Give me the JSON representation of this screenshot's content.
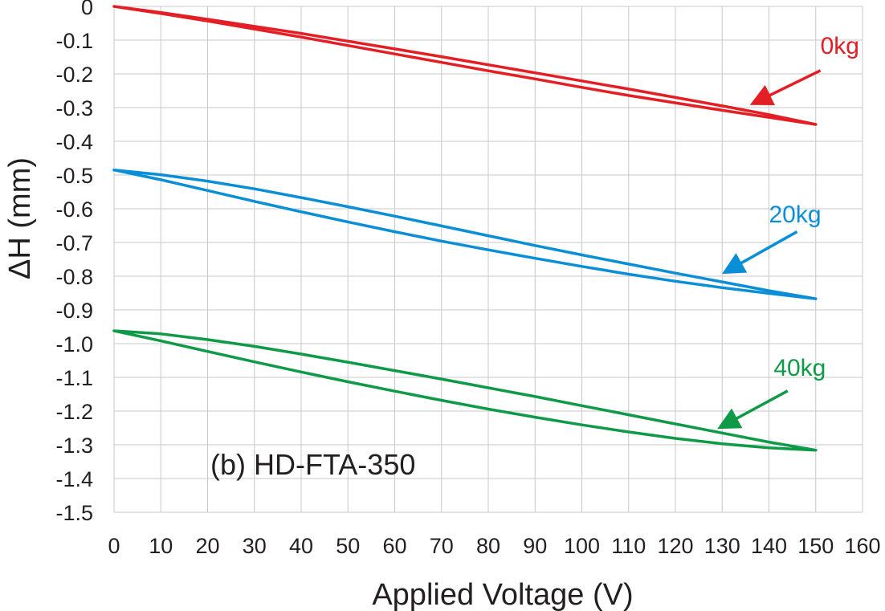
{
  "chart_data": {
    "type": "line",
    "title": "",
    "xlabel": "Applied Voltage (V)",
    "ylabel": "ΔH (mm)",
    "xlim": [
      0,
      160
    ],
    "ylim": [
      -1.5,
      0
    ],
    "xticks": [
      0,
      10,
      20,
      30,
      40,
      50,
      60,
      70,
      80,
      90,
      100,
      110,
      120,
      130,
      140,
      150,
      160
    ],
    "yticks": [
      0,
      -0.1,
      -0.2,
      -0.3,
      -0.4,
      -0.5,
      -0.6,
      -0.7,
      -0.8,
      -0.9,
      -1.0,
      -1.1,
      -1.2,
      -1.3,
      -1.4,
      -1.5
    ],
    "ytick_labels": [
      "0",
      "-0.1",
      "-0.2",
      "-0.3",
      "-0.4",
      "-0.5",
      "-0.6",
      "-0.7",
      "-0.8",
      "-0.9",
      "-1.0",
      "-1.1",
      "-1.2",
      "-1.3",
      "-1.4",
      "-1.5"
    ],
    "grid": true,
    "panel_label": "(b) HD-FTA-350",
    "series": [
      {
        "name": "0kg",
        "color": "#e31e24",
        "ascending": {
          "x": [
            0,
            10,
            20,
            30,
            40,
            50,
            60,
            70,
            80,
            90,
            100,
            110,
            120,
            130,
            140,
            150
          ],
          "y": [
            0,
            -0.021,
            -0.043,
            -0.067,
            -0.091,
            -0.116,
            -0.141,
            -0.166,
            -0.191,
            -0.215,
            -0.24,
            -0.264,
            -0.286,
            -0.308,
            -0.329,
            -0.35
          ]
        },
        "descending": {
          "x": [
            150,
            140,
            130,
            120,
            110,
            100,
            90,
            80,
            70,
            60,
            50,
            40,
            30,
            20,
            10,
            0
          ],
          "y": [
            -0.35,
            -0.321,
            -0.295,
            -0.27,
            -0.245,
            -0.221,
            -0.197,
            -0.173,
            -0.149,
            -0.126,
            -0.103,
            -0.08,
            -0.059,
            -0.038,
            -0.018,
            0
          ]
        }
      },
      {
        "name": "20kg",
        "color": "#0a8fd6",
        "ascending": {
          "x": [
            0,
            10,
            20,
            30,
            40,
            50,
            60,
            70,
            80,
            90,
            100,
            110,
            120,
            130,
            140,
            150
          ],
          "y": [
            -0.485,
            -0.514,
            -0.546,
            -0.578,
            -0.609,
            -0.639,
            -0.668,
            -0.696,
            -0.722,
            -0.747,
            -0.771,
            -0.794,
            -0.815,
            -0.834,
            -0.851,
            -0.867
          ]
        },
        "descending": {
          "x": [
            150,
            140,
            130,
            120,
            110,
            100,
            90,
            80,
            70,
            60,
            50,
            40,
            30,
            20,
            10,
            0
          ],
          "y": [
            -0.867,
            -0.843,
            -0.817,
            -0.791,
            -0.764,
            -0.737,
            -0.709,
            -0.68,
            -0.651,
            -0.622,
            -0.594,
            -0.567,
            -0.541,
            -0.518,
            -0.499,
            -0.485
          ]
        }
      },
      {
        "name": "40kg",
        "color": "#0f9a48",
        "ascending": {
          "x": [
            0,
            10,
            20,
            30,
            40,
            50,
            60,
            70,
            80,
            90,
            100,
            110,
            120,
            130,
            140,
            150
          ],
          "y": [
            -0.962,
            -0.992,
            -1.023,
            -1.054,
            -1.084,
            -1.113,
            -1.141,
            -1.168,
            -1.194,
            -1.218,
            -1.241,
            -1.262,
            -1.281,
            -1.297,
            -1.309,
            -1.316
          ]
        },
        "descending": {
          "x": [
            150,
            140,
            130,
            120,
            110,
            100,
            90,
            80,
            70,
            60,
            50,
            40,
            30,
            20,
            10,
            0
          ],
          "y": [
            -1.316,
            -1.292,
            -1.265,
            -1.238,
            -1.211,
            -1.184,
            -1.157,
            -1.131,
            -1.105,
            -1.08,
            -1.055,
            -1.031,
            -1.008,
            -0.988,
            -0.971,
            -0.962
          ]
        }
      }
    ],
    "annotations": [
      {
        "text": "0kg",
        "series": "0kg",
        "color": "#e31e24",
        "arrow_to": [
          137,
          -0.285
        ],
        "arrow_from": [
          151,
          -0.19
        ],
        "label_at": [
          151,
          -0.14
        ]
      },
      {
        "text": "20kg",
        "series": "20kg",
        "color": "#0a8fd6",
        "arrow_to": [
          131,
          -0.785
        ],
        "arrow_from": [
          146,
          -0.668
        ],
        "label_at": [
          140,
          -0.64
        ]
      },
      {
        "text": "40kg",
        "series": "40kg",
        "color": "#0f9a48",
        "arrow_to": [
          130,
          -1.245
        ],
        "arrow_from": [
          144,
          -1.14
        ],
        "label_at": [
          141,
          -1.095
        ]
      }
    ]
  }
}
